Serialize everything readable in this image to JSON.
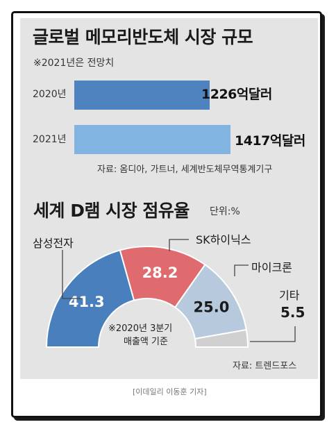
{
  "credit": "[이데일리 이동훈 기자]",
  "chart_data": [
    {
      "type": "bar",
      "title": "글로벌 메모리반도체 시장 규모",
      "note": "※2021년은 전망치",
      "categories": [
        "2020년",
        "2021년"
      ],
      "values": [
        1226,
        1417
      ],
      "value_labels": [
        "1226억달러",
        "1417억달러"
      ],
      "unit": "억달러",
      "xlim": [
        0,
        1417
      ],
      "colors": [
        "#4f83bf",
        "#82b4e1"
      ],
      "source": "자료: 옴디아, 가트너, 세계반도체무역통계기구"
    },
    {
      "type": "pie",
      "title": "세계 D램 시장 점유율",
      "unit_label": "단위:%",
      "categories": [
        "삼성전자",
        "SK하이닉스",
        "마이크론",
        "기타"
      ],
      "values": [
        41.3,
        28.2,
        25.0,
        5.5
      ],
      "value_labels": [
        "41.3",
        "28.2",
        "25.0",
        "5.5"
      ],
      "colors": [
        "#4a7fbd",
        "#e06b6e",
        "#b7c9dc",
        "#d0d0d0"
      ],
      "center_note": [
        "※2020년 3분기",
        "매출액 기준"
      ],
      "source": "자료: 트렌드포스"
    }
  ]
}
